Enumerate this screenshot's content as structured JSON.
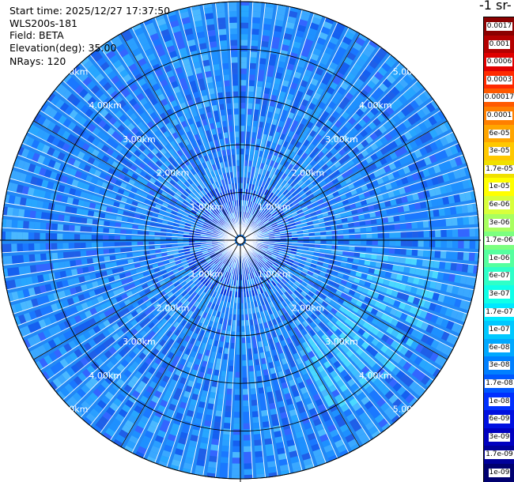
{
  "header": {
    "start_time": "Start time: 2025/12/27 17:37:50",
    "instrument": "WLS200s-181",
    "field": "Field: BETA",
    "elevation": "Elevation(deg): 35.00",
    "nrays": "NRays: 120"
  },
  "colorbar": {
    "units_fragment": "-1 sr-",
    "labels": [
      "0.0017",
      "0.001",
      "0.0006",
      "0.0003",
      "0.00017",
      "0.0001",
      "6e-05",
      "3e-05",
      "1.7e-05",
      "1e-05",
      "6e-06",
      "3e-06",
      "1.7e-06",
      "1e-06",
      "6e-07",
      "3e-07",
      "1.7e-07",
      "1e-07",
      "6e-08",
      "3e-08",
      "1.7e-08",
      "1e-08",
      "6e-09",
      "3e-09",
      "1.7e-09",
      "1e-09"
    ],
    "colors": [
      "#8b0000",
      "#b40000",
      "#e00000",
      "#ff2a00",
      "#ff5a00",
      "#ff7f00",
      "#ffa500",
      "#ffc800",
      "#f0e000",
      "#ffff00",
      "#d8ff3a",
      "#a8ff60",
      "#7cff80",
      "#55ff9f",
      "#2fffc8",
      "#10ffe8",
      "#00e8ff",
      "#00c8ff",
      "#00a8ff",
      "#0080ff",
      "#0058ff",
      "#0030ff",
      "#0010e0",
      "#0000c0",
      "#00009a",
      "#000070"
    ]
  },
  "chart_data": {
    "type": "heatmap",
    "title": "",
    "projection": "polar (PPI scan)",
    "field": "BETA",
    "elevation_deg": 35.0,
    "n_rays": 120,
    "range_rings_km": [
      1,
      2,
      3,
      4,
      5
    ],
    "range_ring_labels": [
      "1.00km",
      "2.00km",
      "3.00km",
      "4.00km",
      "5.00km"
    ],
    "max_range_km": 5.0,
    "color_scale": "log",
    "value_range": [
      1e-09,
      0.0017
    ],
    "dominant_value_range": [
      1e-08,
      1e-07
    ],
    "enhanced_region": {
      "azimuth_deg": [
        95,
        150
      ],
      "range_km": [
        2.5,
        4.2
      ],
      "approx_value": 1.7e-07
    }
  }
}
